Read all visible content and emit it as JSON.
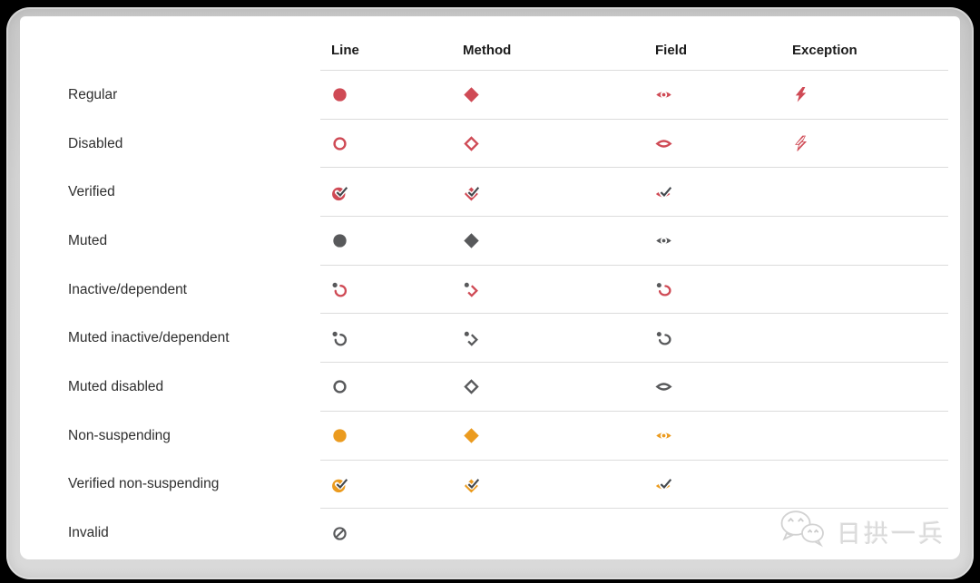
{
  "table": {
    "columns": [
      "Line",
      "Method",
      "Field",
      "Exception"
    ],
    "rows": [
      {
        "label": "Regular",
        "icons": {
          "line": {
            "shape": "circle-filled",
            "color": "red"
          },
          "method": {
            "shape": "diamond-filled",
            "color": "red"
          },
          "field": {
            "shape": "eye-filled",
            "color": "red"
          },
          "exception": {
            "shape": "bolt-filled",
            "color": "red"
          }
        }
      },
      {
        "label": "Disabled",
        "icons": {
          "line": {
            "shape": "circle-outline",
            "color": "red"
          },
          "method": {
            "shape": "diamond-outline",
            "color": "red"
          },
          "field": {
            "shape": "eye-outline",
            "color": "red"
          },
          "exception": {
            "shape": "bolt-hatched",
            "color": "red"
          }
        }
      },
      {
        "label": "Verified",
        "icons": {
          "line": {
            "shape": "circle-check",
            "color": "red"
          },
          "method": {
            "shape": "diamond-check",
            "color": "red"
          },
          "field": {
            "shape": "eye-check",
            "color": "red"
          },
          "exception": null
        }
      },
      {
        "label": "Muted",
        "icons": {
          "line": {
            "shape": "circle-filled",
            "color": "gray"
          },
          "method": {
            "shape": "diamond-filled",
            "color": "gray"
          },
          "field": {
            "shape": "eye-filled",
            "color": "gray"
          },
          "exception": null
        }
      },
      {
        "label": "Inactive/dependent",
        "icons": {
          "line": {
            "shape": "circle-arc-dot",
            "color": "red"
          },
          "method": {
            "shape": "diamond-arc-dot",
            "color": "red"
          },
          "field": {
            "shape": "eye-arc-dot",
            "color": "red"
          },
          "exception": null
        }
      },
      {
        "label": "Muted inactive/dependent",
        "icons": {
          "line": {
            "shape": "circle-arc-dot",
            "color": "gray"
          },
          "method": {
            "shape": "diamond-arc-dot",
            "color": "gray"
          },
          "field": {
            "shape": "eye-arc-dot",
            "color": "gray"
          },
          "exception": null
        }
      },
      {
        "label": "Muted disabled",
        "icons": {
          "line": {
            "shape": "circle-outline",
            "color": "gray"
          },
          "method": {
            "shape": "diamond-outline",
            "color": "gray"
          },
          "field": {
            "shape": "eye-outline",
            "color": "gray"
          },
          "exception": null
        }
      },
      {
        "label": "Non-suspending",
        "icons": {
          "line": {
            "shape": "circle-filled",
            "color": "orange"
          },
          "method": {
            "shape": "diamond-filled",
            "color": "orange"
          },
          "field": {
            "shape": "eye-filled",
            "color": "orange"
          },
          "exception": null
        }
      },
      {
        "label": "Verified non-suspending",
        "icons": {
          "line": {
            "shape": "circle-check",
            "color": "orange"
          },
          "method": {
            "shape": "diamond-check",
            "color": "orange"
          },
          "field": {
            "shape": "eye-check",
            "color": "orange"
          },
          "exception": null
        }
      },
      {
        "label": "Invalid",
        "icons": {
          "line": {
            "shape": "circle-slash",
            "color": "gray"
          },
          "method": null,
          "field": null,
          "exception": null
        }
      }
    ]
  },
  "colors": {
    "red": "#cf4a55",
    "gray": "#58595b",
    "orange": "#eb9b1f",
    "check": "#43484d",
    "divider": "#dcdcdc"
  },
  "watermark": {
    "text": "日拱一兵",
    "icon": "wechat-icon"
  }
}
